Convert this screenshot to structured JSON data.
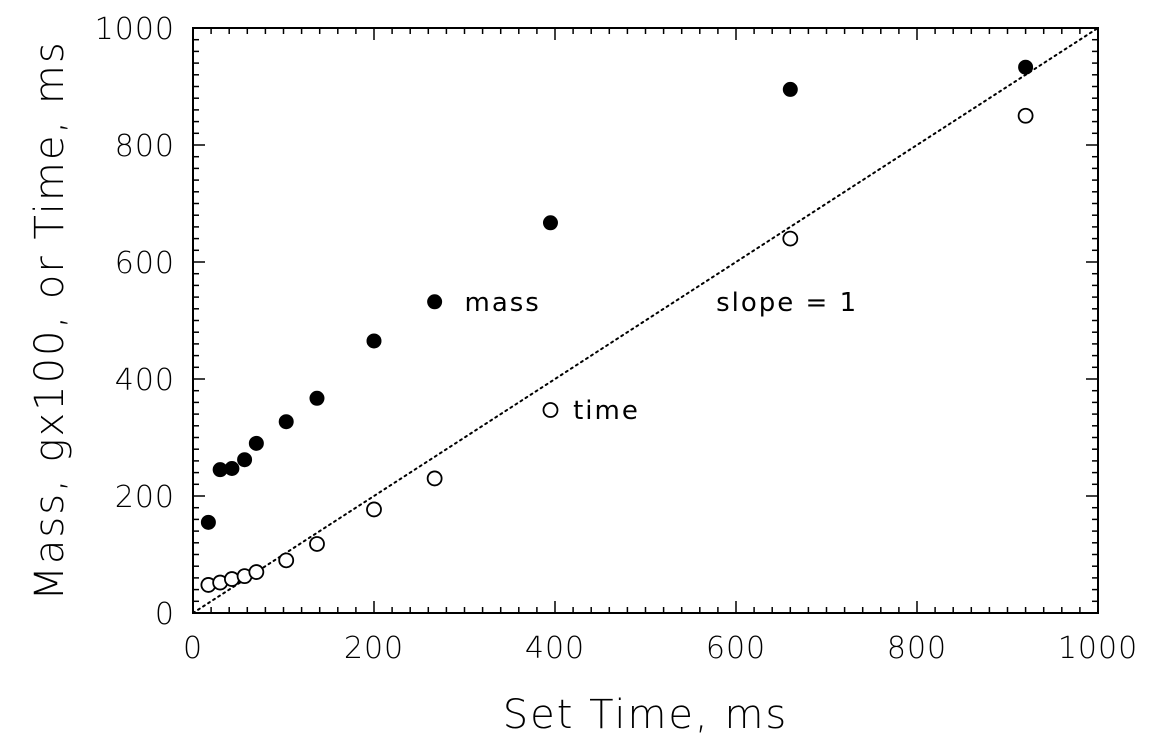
{
  "chart_data": {
    "type": "scatter",
    "xlabel": "Set Time, ms",
    "ylabel": "Mass, gx100, or Time, ms",
    "xlim": [
      0,
      1000
    ],
    "ylim": [
      0,
      1000
    ],
    "x_major_ticks": [
      0,
      200,
      400,
      600,
      800,
      1000
    ],
    "y_major_ticks": [
      0,
      200,
      400,
      600,
      800,
      1000
    ],
    "x_tick_labels": [
      "0",
      "200",
      "400",
      "600",
      "800",
      "1000"
    ],
    "y_tick_labels": [
      "0",
      "200",
      "400",
      "600",
      "800",
      "1000"
    ],
    "grid": false,
    "series": [
      {
        "marker": "filled-circle",
        "color": "#000000",
        "x": [
          17,
          30,
          43,
          57,
          70,
          103,
          137,
          200,
          267,
          395,
          660,
          920
        ],
        "y": [
          155,
          245,
          247,
          262,
          290,
          327,
          367,
          465,
          532,
          667,
          895,
          933
        ]
      },
      {
        "marker": "open-circle",
        "color": "#000000",
        "x": [
          17,
          30,
          43,
          57,
          70,
          103,
          137,
          200,
          267,
          395,
          660,
          920
        ],
        "y": [
          48,
          52,
          58,
          63,
          70,
          90,
          118,
          177,
          230,
          347,
          640,
          850
        ]
      }
    ],
    "reference_line": {
      "style": "dotted",
      "x": [
        0,
        1000
      ],
      "y": [
        0,
        1000
      ]
    },
    "annotations": [
      {
        "text": "mass",
        "x": 300,
        "y": 532
      },
      {
        "text": "slope = 1",
        "x": 578,
        "y": 532
      },
      {
        "text": "time",
        "x": 420,
        "y": 347
      }
    ]
  }
}
